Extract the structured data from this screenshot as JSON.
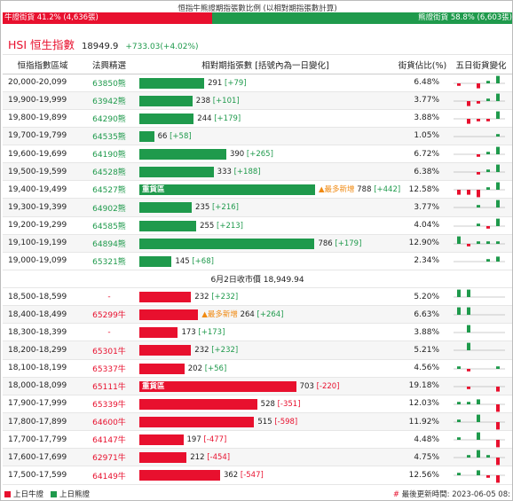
{
  "title": "恒指牛熊證期指張數比例 (以相對期指張數計算)",
  "ratio": {
    "bull_label": "牛證街貨 41.2% (4,636張)",
    "bull_pct": 41.2,
    "bear_label": "熊證街貨 58.8% (6,603張)",
    "bear_pct": 58.8
  },
  "index": {
    "name": "HSI 恒生指數",
    "value": "18949.9",
    "change": "+733.03(+4.02%)"
  },
  "headers": [
    "恒指指數區域",
    "法興精選",
    "相對期指張數 [括號內為一日變化]",
    "街貨佔比(%)",
    "五日街貨變化"
  ],
  "bear_rows": [
    {
      "range": "20,000-20,099",
      "code": "63850熊",
      "value": 291,
      "text": "291",
      "change": "[+79]",
      "pct": "6.48%",
      "tag": "",
      "note": "",
      "spark": [
        -1,
        0,
        -2,
        1,
        3
      ]
    },
    {
      "range": "19,900-19,999",
      "code": "63942熊",
      "value": 238,
      "text": "238",
      "change": "[+101]",
      "pct": "3.77%",
      "tag": "",
      "note": "",
      "spark": [
        0,
        -2,
        -1,
        1,
        3
      ]
    },
    {
      "range": "19,800-19,899",
      "code": "64290熊",
      "value": 244,
      "text": "244",
      "change": "[+179]",
      "pct": "3.88%",
      "tag": "",
      "note": "",
      "spark": [
        0,
        -2,
        -1,
        -1,
        3
      ]
    },
    {
      "range": "19,700-19,799",
      "code": "64535熊",
      "value": 66,
      "text": "66",
      "change": "[+58]",
      "pct": "1.05%",
      "tag": "",
      "note": "",
      "spark": [
        0,
        0,
        0,
        0,
        1
      ]
    },
    {
      "range": "19,600-19,699",
      "code": "64190熊",
      "value": 390,
      "text": "390",
      "change": "[+265]",
      "pct": "6.72%",
      "tag": "",
      "note": "",
      "spark": [
        0,
        0,
        -1,
        1,
        3
      ]
    },
    {
      "range": "19,500-19,599",
      "code": "64528熊",
      "value": 333,
      "text": "333",
      "change": "[+188]",
      "pct": "6.38%",
      "tag": "",
      "note": "",
      "spark": [
        0,
        0,
        -1,
        1,
        3
      ]
    },
    {
      "range": "19,400-19,499",
      "code": "64527熊",
      "value": 788,
      "text": "788",
      "change": "[+442]",
      "pct": "12.58%",
      "tag": "重貨區",
      "note": "▲最多新增",
      "spark": [
        -2,
        -2,
        -3,
        1,
        3
      ]
    },
    {
      "range": "19,300-19,399",
      "code": "64902熊",
      "value": 235,
      "text": "235",
      "change": "[+216]",
      "pct": "3.77%",
      "tag": "",
      "note": "",
      "spark": [
        0,
        0,
        1,
        0,
        3
      ]
    },
    {
      "range": "19,200-19,299",
      "code": "64585熊",
      "value": 255,
      "text": "255",
      "change": "[+213]",
      "pct": "4.04%",
      "tag": "",
      "note": "",
      "spark": [
        0,
        0,
        1,
        -1,
        3
      ]
    },
    {
      "range": "19,100-19,199",
      "code": "64894熊",
      "value": 786,
      "text": "786",
      "change": "[+179]",
      "pct": "12.90%",
      "tag": "",
      "note": "",
      "spark": [
        3,
        -1,
        1,
        1,
        1
      ]
    },
    {
      "range": "19,000-19,099",
      "code": "65321熊",
      "value": 145,
      "text": "145",
      "change": "[+68]",
      "pct": "2.34%",
      "tag": "",
      "note": "",
      "spark": [
        0,
        0,
        0,
        1,
        2
      ]
    }
  ],
  "midline": "6月2日收市價 18,949.94",
  "bull_rows": [
    {
      "range": "18,500-18,599",
      "code": "-",
      "value": 232,
      "text": "232",
      "change": "[+232]",
      "pct": "5.20%",
      "tag": "",
      "note": "",
      "spark": [
        3,
        3,
        0,
        0,
        0
      ]
    },
    {
      "range": "18,400-18,499",
      "code": "65299牛",
      "value": 264,
      "text": "264",
      "change": "[+264]",
      "pct": "6.63%",
      "tag": "",
      "note": "▲最多新增",
      "spark": [
        3,
        3,
        0,
        0,
        0
      ]
    },
    {
      "range": "18,300-18,399",
      "code": "-",
      "value": 173,
      "text": "173",
      "change": "[+173]",
      "pct": "3.88%",
      "tag": "",
      "note": "",
      "spark": [
        0,
        3,
        0,
        0,
        0
      ]
    },
    {
      "range": "18,200-18,299",
      "code": "65301牛",
      "value": 232,
      "text": "232",
      "change": "[+232]",
      "pct": "5.21%",
      "tag": "",
      "note": "",
      "spark": [
        0,
        3,
        0,
        0,
        0
      ]
    },
    {
      "range": "18,100-18,199",
      "code": "65337牛",
      "value": 202,
      "text": "202",
      "change": "[+56]",
      "pct": "4.56%",
      "tag": "",
      "note": "",
      "spark": [
        1,
        -1,
        0,
        0,
        1
      ]
    },
    {
      "range": "18,000-18,099",
      "code": "65111牛",
      "value": 703,
      "text": "703",
      "change": "[-220]",
      "pct": "19.18%",
      "tag": "重貨區",
      "note": "",
      "spark": [
        0,
        -1,
        0,
        0,
        -2
      ]
    },
    {
      "range": "17,900-17,999",
      "code": "65339牛",
      "value": 528,
      "text": "528",
      "change": "[-351]",
      "pct": "12.03%",
      "tag": "",
      "note": "",
      "spark": [
        1,
        1,
        2,
        0,
        -3
      ]
    },
    {
      "range": "17,800-17,899",
      "code": "64600牛",
      "value": 515,
      "text": "515",
      "change": "[-598]",
      "pct": "11.92%",
      "tag": "",
      "note": "",
      "spark": [
        1,
        0,
        3,
        0,
        -3
      ]
    },
    {
      "range": "17,700-17,799",
      "code": "64147牛",
      "value": 197,
      "text": "197",
      "change": "[-477]",
      "pct": "4.48%",
      "tag": "",
      "note": "",
      "spark": [
        1,
        0,
        3,
        0,
        -3
      ]
    },
    {
      "range": "17,600-17,699",
      "code": "62971牛",
      "value": 212,
      "text": "212",
      "change": "[-454]",
      "pct": "4.75%",
      "tag": "",
      "note": "",
      "spark": [
        0,
        1,
        3,
        1,
        -3
      ]
    },
    {
      "range": "17,500-17,599",
      "code": "64149牛",
      "value": 362,
      "text": "362",
      "change": "[-547]",
      "pct": "12.56%",
      "tag": "",
      "note": "",
      "spark": [
        1,
        0,
        2,
        -1,
        -3
      ]
    }
  ],
  "legend": {
    "bull": "上日牛證",
    "bear": "上日熊證"
  },
  "updated": {
    "hash": "#",
    "text": "最後更新時間: 2023-06-05 08:"
  },
  "colors": {
    "bull": "#e8102e",
    "bear": "#1f9a4c",
    "warn": "#f08a12"
  }
}
